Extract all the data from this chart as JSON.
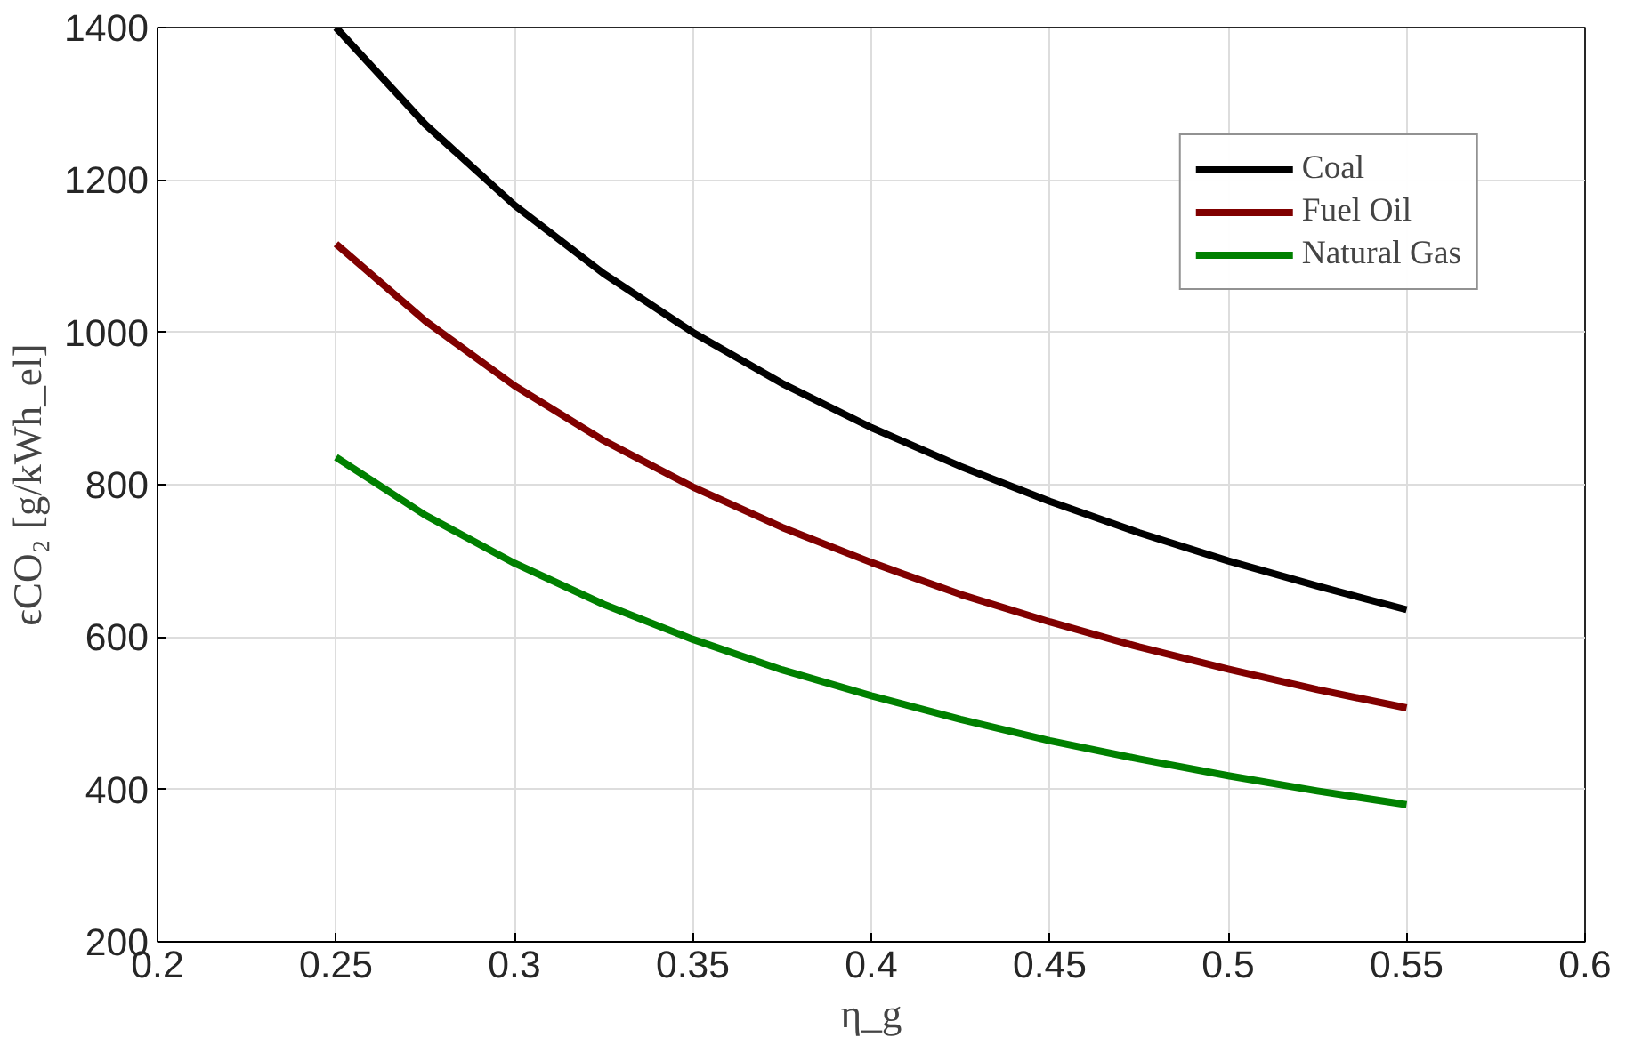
{
  "chart_data": {
    "type": "line",
    "xlabel": "η_g",
    "ylabel": "ϵCO₂ [g/kWh_el]",
    "x": [
      0.25,
      0.275,
      0.3,
      0.325,
      0.35,
      0.375,
      0.4,
      0.425,
      0.45,
      0.475,
      0.5,
      0.525,
      0.55
    ],
    "series": [
      {
        "name": "Coal",
        "color": "#000000",
        "values": [
          1400,
          1273,
          1167,
          1077,
          1000,
          933,
          875,
          824,
          778,
          737,
          700,
          667,
          636
        ]
      },
      {
        "name": "Fuel Oil",
        "color": "#800000",
        "values": [
          1116,
          1015,
          930,
          858,
          797,
          744,
          698,
          656,
          620,
          587,
          558,
          531,
          507
        ]
      },
      {
        "name": "Natural Gas",
        "color": "#008000",
        "values": [
          836,
          760,
          697,
          643,
          597,
          557,
          523,
          492,
          464,
          440,
          418,
          398,
          380
        ]
      }
    ],
    "xlim": [
      0.2,
      0.6
    ],
    "xticks": [
      0.2,
      0.25,
      0.3,
      0.35,
      0.4,
      0.45,
      0.5,
      0.55,
      0.6
    ],
    "ylim": [
      200,
      1400
    ],
    "yticks": [
      200,
      400,
      600,
      800,
      1000,
      1200,
      1400
    ],
    "grid": true,
    "legend": "top right",
    "marker": "none",
    "line_style": "solid"
  }
}
